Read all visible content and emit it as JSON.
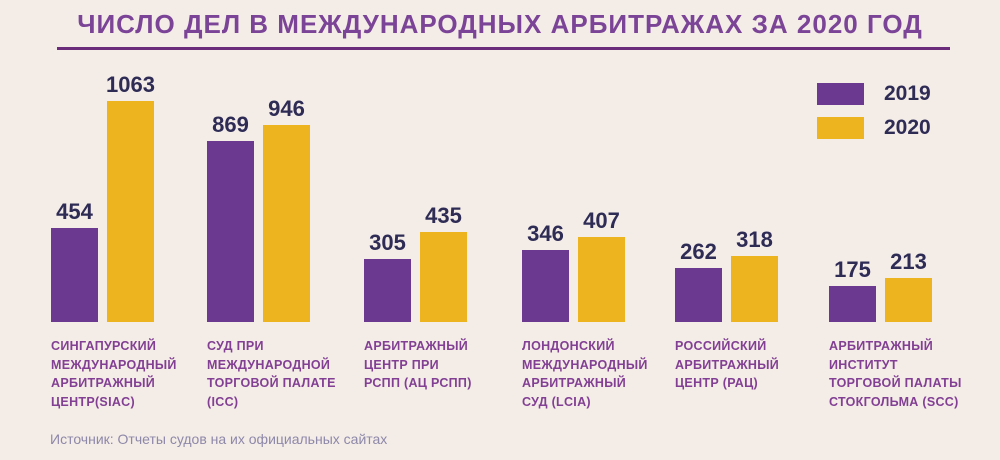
{
  "title": "ЧИСЛО ДЕЛ В МЕЖДУНАРОДНЫХ АРБИТРАЖАХ ЗА 2020 ГОД",
  "source": "Источник: Отчеты судов на их официальных сайтах",
  "legend": {
    "position": "top-right",
    "items": [
      {
        "label": "2019",
        "color": "#6c3990"
      },
      {
        "label": "2020",
        "color": "#eeb41f"
      }
    ]
  },
  "colors": {
    "background": "#f3ece7",
    "title": "#7b4496",
    "title_rule": "#6b2d7b",
    "value_label": "#2e2b55",
    "category_label": "#823f93",
    "source_text": "#8e88a9",
    "bar_2019": "#6c3990",
    "bar_2020": "#eeb41f"
  },
  "chart_data": {
    "type": "bar",
    "title": "ЧИСЛО ДЕЛ В МЕЖДУНАРОДНЫХ АРБИТРАЖАХ ЗА 2020 ГОД",
    "xlabel": "",
    "ylabel": "",
    "ylim": [
      0,
      1063
    ],
    "grid": false,
    "axes_shown": false,
    "value_labels_shown": true,
    "legend_position": "top-right",
    "categories": [
      {
        "full": "СИНГАПУРСКИЙ МЕЖДУНАРОДНЫЙ АРБИТРАЖНЫЙ ЦЕНТР(SIAC)",
        "lines": [
          "СИНГАПУРСКИЙ",
          "МЕЖДУНАРОДНЫЙ",
          "АРБИТРАЖНЫЙ",
          "ЦЕНТР(SIAC)"
        ]
      },
      {
        "full": "СУД ПРИ МЕЖДУНАРОДНОЙ ТОРГОВОЙ ПАЛАТЕ (ICC)",
        "lines": [
          "СУД ПРИ",
          "МЕЖДУНАРОДНОЙ",
          "ТОРГОВОЙ ПАЛАТЕ",
          "(ICC)"
        ]
      },
      {
        "full": "АРБИТРАЖНЫЙ ЦЕНТР ПРИ РСПП (АЦ РСПП)",
        "lines": [
          "АРБИТРАЖНЫЙ",
          "ЦЕНТР ПРИ",
          "РСПП (АЦ РСПП)"
        ]
      },
      {
        "full": "ЛОНДОНСКИЙ МЕЖДУНАРОДНЫЙ АРБИТРАЖНЫЙ СУД (LCIA)",
        "lines": [
          "ЛОНДОНСКИЙ",
          "МЕЖДУНАРОДНЫЙ",
          "АРБИТРАЖНЫЙ",
          "СУД (LCIA)"
        ]
      },
      {
        "full": "РОССИЙСКИЙ АРБИТРАЖНЫЙ ЦЕНТР (РАЦ)",
        "lines": [
          "РОССИЙСКИЙ",
          "АРБИТРАЖНЫЙ",
          "ЦЕНТР (РАЦ)"
        ]
      },
      {
        "full": "АРБИТРАЖНЫЙ ИНСТИТУТ ТОРГОВОЙ ПАЛАТЫ СТОКГОЛЬМА (SCC)",
        "lines": [
          "АРБИТРАЖНЫЙ",
          "ИНСТИТУТ",
          "ТОРГОВОЙ ПАЛАТЫ",
          "СТОКГОЛЬМА (SCC)"
        ]
      }
    ],
    "series": [
      {
        "name": "2019",
        "color": "#6c3990",
        "values": [
          454,
          869,
          305,
          346,
          262,
          175
        ]
      },
      {
        "name": "2020",
        "color": "#eeb41f",
        "values": [
          1063,
          946,
          435,
          407,
          318,
          213
        ]
      }
    ]
  }
}
